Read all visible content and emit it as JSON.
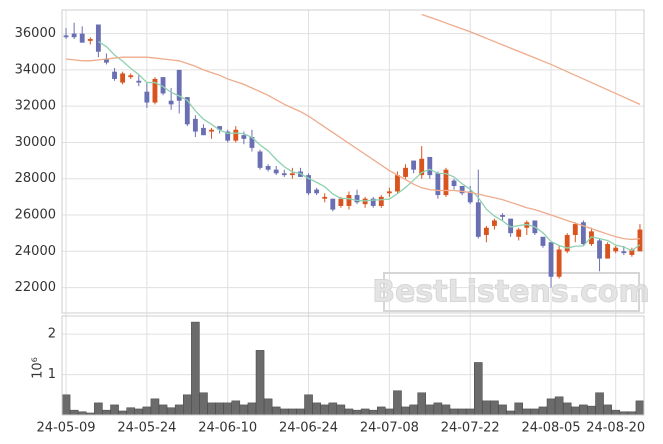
{
  "chart_data": [
    {
      "type": "candlestick",
      "categories": [
        "24-05-09",
        null,
        null,
        null,
        null,
        null,
        null,
        null,
        null,
        null,
        "24-05-24",
        null,
        null,
        null,
        null,
        null,
        null,
        null,
        null,
        null,
        "24-06-10",
        null,
        null,
        null,
        null,
        null,
        null,
        null,
        null,
        null,
        "24-06-24",
        null,
        null,
        null,
        null,
        null,
        null,
        null,
        null,
        null,
        "24-07-08",
        null,
        null,
        null,
        null,
        null,
        null,
        null,
        null,
        null,
        "24-07-22",
        null,
        null,
        null,
        null,
        null,
        null,
        null,
        null,
        null,
        "24-08-05",
        null,
        null,
        null,
        null,
        null,
        null,
        null,
        "24-08-20",
        null,
        null,
        null
      ],
      "open": [
        35900,
        36000,
        36000,
        35600,
        36500,
        34600,
        33900,
        33300,
        33600,
        33400,
        32800,
        32200,
        33600,
        32300,
        34000,
        32500,
        31300,
        30800,
        30600,
        30900,
        30600,
        30100,
        30400,
        30300,
        29500,
        28700,
        28500,
        28300,
        28200,
        28400,
        28200,
        27400,
        26900,
        26900,
        26500,
        26500,
        27100,
        26600,
        26900,
        26500,
        27200,
        27300,
        28100,
        29000,
        28200,
        29200,
        28300,
        27100,
        27900,
        27600,
        27300,
        26700,
        24900,
        25400,
        26000,
        25800,
        24800,
        25300,
        25700,
        24800,
        24500,
        22600,
        24000,
        24900,
        25600,
        24400,
        24600,
        23600,
        24000,
        24000,
        23800,
        24000
      ],
      "high": [
        36300,
        36600,
        36400,
        35800,
        36500,
        34900,
        34100,
        33900,
        33800,
        33700,
        33300,
        33600,
        33600,
        33000,
        34000,
        32500,
        31500,
        31000,
        30800,
        30900,
        30700,
        30900,
        30600,
        30700,
        29600,
        28800,
        28700,
        28500,
        28600,
        28600,
        28300,
        27500,
        27200,
        26900,
        27000,
        27300,
        27400,
        27000,
        27000,
        27100,
        27500,
        28400,
        28800,
        29000,
        29800,
        29200,
        28400,
        28600,
        28000,
        27600,
        27600,
        28500,
        25400,
        25800,
        26100,
        25800,
        25300,
        25700,
        25700,
        24800,
        24500,
        24300,
        25000,
        25600,
        25700,
        25300,
        24700,
        24500,
        24300,
        24300,
        24200,
        25500
      ],
      "low": [
        35700,
        35700,
        35500,
        35400,
        34700,
        34300,
        33400,
        33200,
        33500,
        33100,
        31900,
        32100,
        32600,
        31800,
        31600,
        30900,
        30300,
        30400,
        30200,
        30500,
        30000,
        30000,
        29900,
        29500,
        28500,
        28400,
        28200,
        28100,
        28000,
        28100,
        27100,
        27100,
        26700,
        26200,
        26400,
        26300,
        26600,
        26400,
        26400,
        26400,
        27000,
        27200,
        28000,
        28300,
        28000,
        28000,
        26900,
        27000,
        27400,
        27100,
        26600,
        24700,
        24500,
        25200,
        25700,
        24800,
        24600,
        24900,
        24900,
        24200,
        22000,
        22500,
        23900,
        24500,
        24300,
        24300,
        22900,
        23600,
        23900,
        23800,
        23700,
        24000
      ],
      "close": [
        35800,
        35800,
        35500,
        35700,
        35000,
        34400,
        33500,
        33800,
        33700,
        33300,
        32200,
        33500,
        32700,
        32100,
        32300,
        31000,
        30600,
        30400,
        30700,
        30700,
        30100,
        30700,
        30200,
        29700,
        28600,
        28500,
        28300,
        28200,
        28300,
        28100,
        27200,
        27200,
        27000,
        26300,
        26900,
        27100,
        26700,
        26900,
        26500,
        27000,
        27300,
        28200,
        28600,
        28500,
        29100,
        28200,
        27100,
        28500,
        27600,
        27200,
        26700,
        24800,
        25300,
        25700,
        25900,
        25000,
        25200,
        25600,
        25000,
        24300,
        22600,
        24100,
        24900,
        25500,
        24400,
        25100,
        23600,
        24400,
        24200,
        23900,
        24100,
        25200
      ],
      "up_color": "#d9531e",
      "down_color": "#6a6fb3",
      "lines": [
        {
          "color": "#8fd1b0",
          "values": [
            null,
            null,
            null,
            null,
            35560,
            35280,
            34820,
            34480,
            34080,
            33740,
            33300,
            33300,
            33080,
            32760,
            32560,
            32320,
            31740,
            31280,
            31000,
            30680,
            30500,
            30520,
            30480,
            30280,
            29860,
            29540,
            29060,
            28660,
            28380,
            28280,
            28020,
            27800,
            27560,
            27160,
            26920,
            26900,
            26800,
            26780,
            26820,
            26840,
            26880,
            27180,
            27520,
            27920,
            28340,
            28520,
            28300,
            28280,
            28100,
            27720,
            27420,
            26960,
            26320,
            25940,
            25680,
            25340,
            25420,
            25480,
            25340,
            25020,
            24540,
            24320,
            24180,
            24280,
            24300,
            24800,
            24700,
            24600,
            24340,
            24240,
            24040,
            24360
          ]
        },
        {
          "color": "#efab8c",
          "values": [
            34600,
            34550,
            34500,
            34500,
            34550,
            34600,
            34650,
            34700,
            34700,
            34700,
            34700,
            34650,
            34600,
            34550,
            34500,
            34350,
            34200,
            34000,
            33850,
            33700,
            33500,
            33350,
            33200,
            33000,
            32800,
            32600,
            32350,
            32100,
            31900,
            31700,
            31450,
            31150,
            30850,
            30550,
            30250,
            29950,
            29650,
            29350,
            29050,
            28750,
            28450,
            28200,
            27950,
            27700,
            27500,
            27400,
            27350,
            27350,
            27350,
            27300,
            27250,
            27150,
            27050,
            26950,
            26850,
            26700,
            26550,
            26400,
            26300,
            26150,
            26000,
            25850,
            25700,
            25550,
            25400,
            25250,
            25100,
            24950,
            24800,
            24700,
            24650,
            24700
          ]
        },
        {
          "color": "#efab8c",
          "values": [
            null,
            null,
            null,
            null,
            null,
            null,
            null,
            null,
            null,
            null,
            null,
            null,
            null,
            null,
            null,
            null,
            null,
            null,
            null,
            null,
            null,
            null,
            null,
            null,
            null,
            null,
            null,
            null,
            null,
            null,
            null,
            null,
            null,
            null,
            null,
            null,
            null,
            null,
            null,
            null,
            null,
            null,
            null,
            null,
            37050,
            36900,
            36750,
            36580,
            36420,
            36260,
            36100,
            35920,
            35740,
            35560,
            35380,
            35200,
            35020,
            34840,
            34660,
            34480,
            34300,
            34100,
            33900,
            33700,
            33500,
            33300,
            33100,
            32900,
            32700,
            32500,
            32300,
            32100
          ]
        }
      ],
      "ylim": [
        20600,
        37300
      ],
      "yticks": [
        22000,
        24000,
        26000,
        28000,
        30000,
        32000,
        34000,
        36000
      ],
      "grid": true
    },
    {
      "type": "bar",
      "ylabel": "10⁶",
      "color": "#6b6b6b",
      "values": [
        0.5,
        0.12,
        0.08,
        0.05,
        0.3,
        0.12,
        0.25,
        0.1,
        0.18,
        0.15,
        0.2,
        0.4,
        0.25,
        0.18,
        0.25,
        0.5,
        2.3,
        0.55,
        0.3,
        0.3,
        0.3,
        0.35,
        0.25,
        0.3,
        1.6,
        0.4,
        0.2,
        0.15,
        0.15,
        0.15,
        0.5,
        0.3,
        0.25,
        0.3,
        0.25,
        0.15,
        0.12,
        0.15,
        0.12,
        0.2,
        0.15,
        0.6,
        0.2,
        0.25,
        0.55,
        0.25,
        0.3,
        0.25,
        0.15,
        0.15,
        0.15,
        1.3,
        0.35,
        0.35,
        0.25,
        0.1,
        0.3,
        0.15,
        0.15,
        0.2,
        0.4,
        0.45,
        0.3,
        0.2,
        0.25,
        0.22,
        0.55,
        0.25,
        0.12,
        0.08,
        0.08,
        0.35
      ],
      "ylim": [
        0,
        2.45
      ],
      "yticks": [
        1,
        2
      ],
      "grid": true
    }
  ],
  "watermark": "BestListens.com"
}
